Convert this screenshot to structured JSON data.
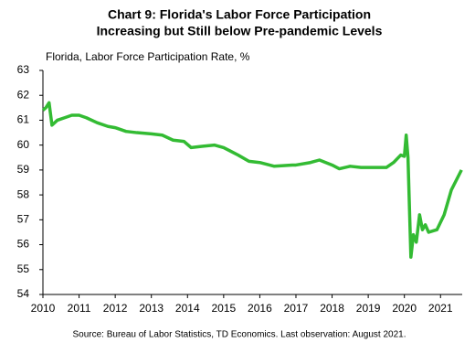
{
  "chart_data": {
    "type": "line",
    "title": [
      "Chart 9: Florida's Labor Force Participation",
      "Increasing but Still below Pre-pandemic Levels"
    ],
    "y_label": "Florida, Labor Force Participation Rate, %",
    "source": "Source:  Bureau of Labor Statistics, TD Economics.  Last observation:  August 2021.",
    "x": [
      2010.0,
      2010.08,
      2010.17,
      2010.25,
      2010.4,
      2010.6,
      2010.8,
      2011.0,
      2011.2,
      2011.5,
      2011.8,
      2012.0,
      2012.3,
      2012.6,
      2013.0,
      2013.3,
      2013.6,
      2013.9,
      2014.1,
      2014.4,
      2014.75,
      2015.0,
      2015.4,
      2015.7,
      2016.0,
      2016.4,
      2016.9,
      2017.0,
      2017.4,
      2017.65,
      2018.0,
      2018.2,
      2018.5,
      2018.8,
      2019.0,
      2019.3,
      2019.5,
      2019.7,
      2019.9,
      2020.0,
      2020.05,
      2020.1,
      2020.18,
      2020.25,
      2020.33,
      2020.42,
      2020.5,
      2020.58,
      2020.67,
      2020.9,
      2021.1,
      2021.3,
      2021.58
    ],
    "series": [
      {
        "name": "Florida",
        "color": "#33bb33",
        "values": [
          61.4,
          61.5,
          61.7,
          60.8,
          61.0,
          61.1,
          61.2,
          61.2,
          61.1,
          60.9,
          60.75,
          60.7,
          60.55,
          60.5,
          60.45,
          60.4,
          60.2,
          60.15,
          59.9,
          59.95,
          60.0,
          59.9,
          59.6,
          59.35,
          59.3,
          59.15,
          59.2,
          59.2,
          59.3,
          59.4,
          59.2,
          59.05,
          59.15,
          59.1,
          59.1,
          59.1,
          59.1,
          59.3,
          59.6,
          59.55,
          60.4,
          59.5,
          55.5,
          56.4,
          56.1,
          57.2,
          56.6,
          56.8,
          56.5,
          56.6,
          57.2,
          58.2,
          59.0
        ]
      }
    ],
    "xlim": [
      2010,
      2021.6
    ],
    "xticks": [
      2010,
      2011,
      2012,
      2013,
      2014,
      2015,
      2016,
      2017,
      2018,
      2019,
      2020,
      2021
    ],
    "ylim": [
      54,
      63
    ],
    "yticks": [
      54,
      55,
      56,
      57,
      58,
      59,
      60,
      61,
      62,
      63
    ],
    "grid": false
  }
}
